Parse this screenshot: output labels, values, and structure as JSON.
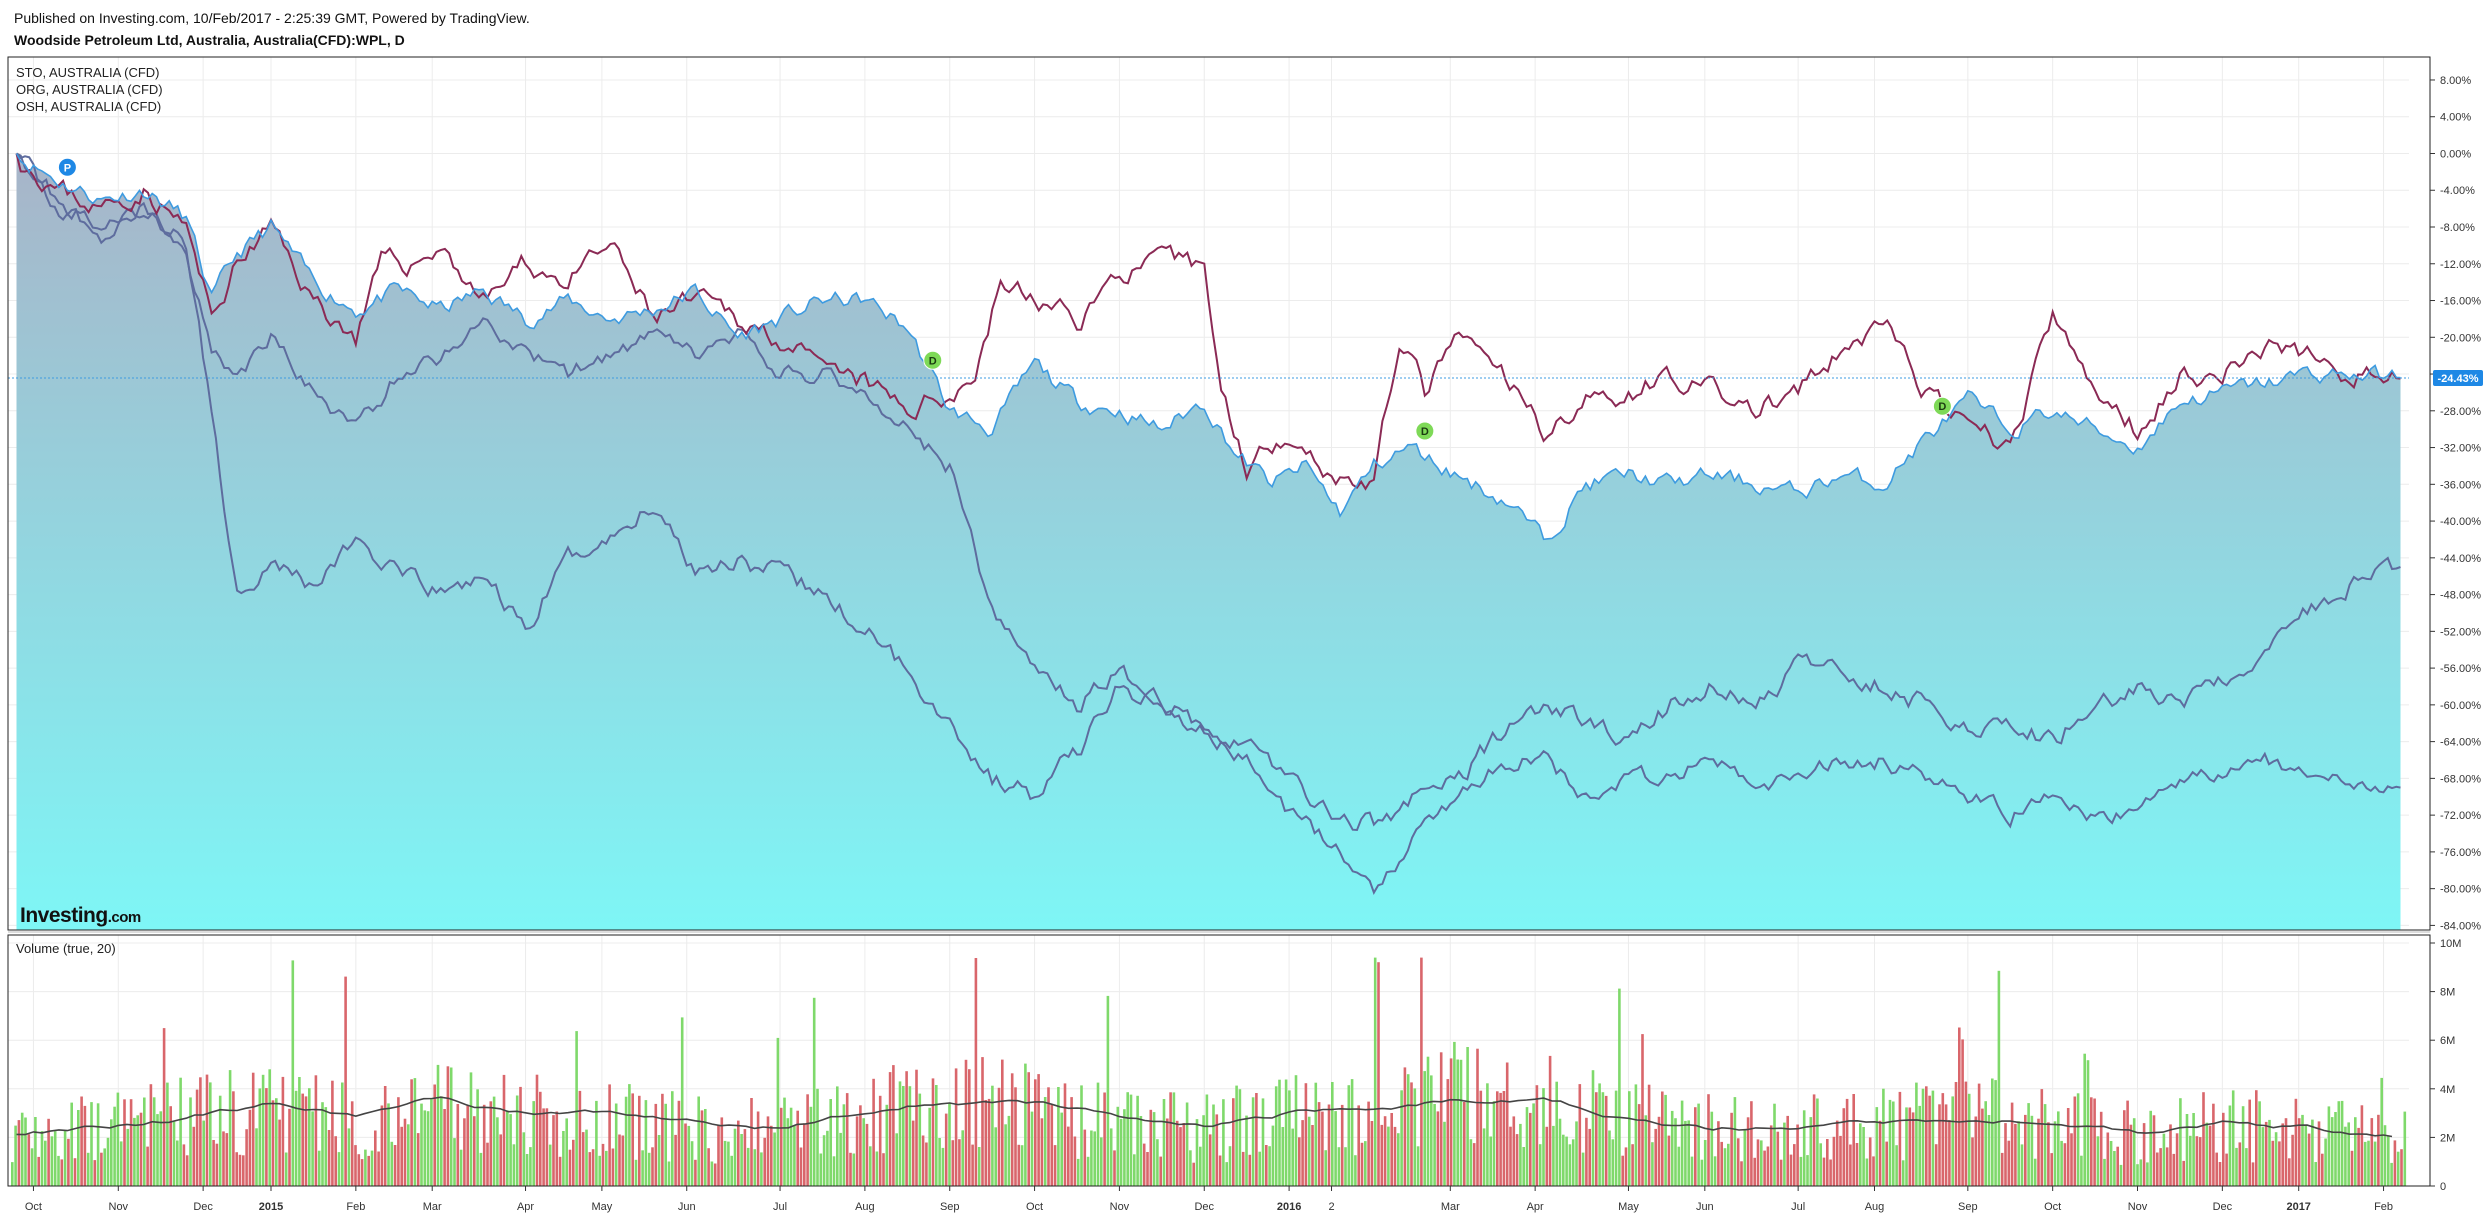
{
  "header": {
    "published": "Published on Investing.com, 10/Feb/2017 - 2:25:39 GMT, Powered by TradingView.",
    "instrument": "Woodside Petroleum Ltd, Australia, Australia(CFD):WPL, D"
  },
  "legend": [
    "STO, AUSTRALIA (CFD)",
    "ORG, AUSTRALIA (CFD)",
    "OSH, AUSTRALIA (CFD)"
  ],
  "logo": {
    "main": "Investing",
    "sub": ".com"
  },
  "volume_label": "Volume (true, 20)",
  "last_value_label": "-24.43%",
  "markers": [
    {
      "letter": "P",
      "month": 0.6,
      "value": -1.5,
      "color": "#1e88e5"
    },
    {
      "letter": "D",
      "month": 10.8,
      "value": -22.5,
      "color": "#7ed957"
    },
    {
      "letter": "D",
      "month": 16.6,
      "value": -30.2,
      "color": "#7ed957"
    },
    {
      "letter": "D",
      "month": 22.7,
      "value": -27.5,
      "color": "#7ed957"
    }
  ],
  "colors": {
    "wpl_line": "#3e9be0",
    "area_top": "#a8b4c8",
    "area_bottom": "#7ef6f6",
    "compare_red": "#8b2a55",
    "compare_gray": "#5e6c9e",
    "vol_up": "#7fd96b",
    "vol_down": "#d9666b",
    "vol_ma": "#444444",
    "badge": "#1e88e5"
  },
  "chart_data": [
    {
      "type": "area",
      "title": "Woodside Petroleum Ltd, Australia, Australia(CFD):WPL, D",
      "x_axis": {
        "type": "time",
        "ticks": [
          "Oct",
          "Nov",
          "Dec",
          "2015",
          "Feb",
          "Mar",
          "Apr",
          "May",
          "Jun",
          "Jul",
          "Aug",
          "Sep",
          "Oct",
          "Nov",
          "Dec",
          "2016",
          "2",
          "Mar",
          "Apr",
          "May",
          "Jun",
          "Jul",
          "Aug",
          "Sep",
          "Oct",
          "Nov",
          "Dec",
          "2017",
          "Feb"
        ],
        "bold_ticks": [
          "2015",
          "2016",
          "2017"
        ],
        "tick_positions": [
          0.2,
          1.2,
          2.2,
          3.0,
          4.0,
          4.9,
          6.0,
          6.9,
          7.9,
          9.0,
          10.0,
          11.0,
          12.0,
          13.0,
          14.0,
          15.0,
          15.5,
          16.9,
          17.9,
          19.0,
          19.9,
          21.0,
          21.9,
          23.0,
          24.0,
          25.0,
          26.0,
          26.9,
          27.9
        ],
        "range_months": [
          -0.1,
          28.2
        ]
      },
      "y_axis": {
        "unit": "%",
        "ticks": [
          "8.00%",
          "4.00%",
          "0.00%",
          "-4.00%",
          "-8.00%",
          "-12.00%",
          "-16.00%",
          "-20.00%",
          "-24.00%",
          "-28.00%",
          "-32.00%",
          "-36.00%",
          "-40.00%",
          "-44.00%",
          "-48.00%",
          "-52.00%",
          "-56.00%",
          "-60.00%",
          "-64.00%",
          "-68.00%",
          "-72.00%",
          "-76.00%",
          "-80.00%",
          "-84.00%"
        ],
        "range": [
          -84.5,
          10.5
        ]
      },
      "grid": true,
      "last_value": -24.43,
      "series": [
        {
          "name": "WPL",
          "style": "area",
          "x": [
            0,
            0.5,
            1,
            1.5,
            2,
            2.3,
            2.6,
            3,
            3.5,
            4,
            4.5,
            5,
            5.5,
            6,
            6.5,
            7,
            7.5,
            8,
            8.5,
            9,
            9.5,
            10,
            10.5,
            11,
            11.5,
            12,
            12.5,
            13,
            13.5,
            14,
            14.4,
            14.8,
            15.2,
            15.6,
            16,
            16.4,
            16.8,
            17.2,
            17.6,
            18,
            18.5,
            19,
            19.5,
            20,
            20.5,
            21,
            21.5,
            22,
            22.5,
            23,
            23.5,
            24,
            24.5,
            25,
            25.5,
            26,
            26.5,
            27,
            27.5,
            28.1
          ],
          "y": [
            0,
            -3,
            -5,
            -4,
            -7,
            -16,
            -11,
            -8,
            -14,
            -17,
            -15,
            -17,
            -15,
            -18,
            -16,
            -18,
            -17,
            -15,
            -20,
            -18,
            -16,
            -16,
            -19,
            -28,
            -30,
            -23,
            -27,
            -28,
            -30,
            -27,
            -33,
            -36,
            -34,
            -39,
            -34,
            -32,
            -34,
            -36,
            -38,
            -42,
            -36,
            -35,
            -36,
            -35,
            -36,
            -37,
            -35,
            -36,
            -31,
            -27,
            -30,
            -28,
            -30,
            -32,
            -27,
            -26,
            -25,
            -24,
            -24,
            -24.4
          ]
        },
        {
          "name": "STO",
          "style": "line",
          "x": [
            0,
            0.5,
            1,
            1.5,
            2,
            2.3,
            2.6,
            3,
            3.5,
            4,
            4.3,
            4.7,
            5,
            5.5,
            6,
            6.5,
            7,
            7.5,
            8,
            8.5,
            9,
            9.5,
            10,
            10.5,
            11,
            11.3,
            11.6,
            12,
            12.5,
            13,
            13.5,
            14,
            14.2,
            14.5,
            15,
            15.5,
            16,
            16.3,
            16.6,
            17,
            17.5,
            18,
            18.5,
            19,
            19.5,
            20,
            20.5,
            21,
            21.5,
            22,
            22.5,
            23,
            23.5,
            24,
            24.5,
            25,
            25.5,
            26,
            26.5,
            27,
            27.5,
            28.1
          ],
          "y": [
            0,
            -4,
            -6,
            -4,
            -8,
            -18,
            -12,
            -8,
            -16,
            -20,
            -12,
            -12,
            -10,
            -16,
            -12,
            -14,
            -10,
            -18,
            -16,
            -18,
            -20,
            -24,
            -25,
            -28,
            -26,
            -24,
            -14,
            -16,
            -18,
            -13,
            -12,
            -12,
            -26,
            -34,
            -30,
            -35,
            -36,
            -20,
            -26,
            -20,
            -24,
            -30,
            -27,
            -26,
            -24,
            -26,
            -28,
            -26,
            -22,
            -18,
            -26,
            -30,
            -32,
            -18,
            -26,
            -30,
            -24,
            -24,
            -21,
            -22,
            -24,
            -24.5
          ]
        },
        {
          "name": "ORG",
          "style": "line",
          "x": [
            0,
            0.5,
            1,
            1.5,
            2,
            2.3,
            2.6,
            3,
            3.5,
            4,
            4.5,
            5,
            5.5,
            6,
            6.5,
            7,
            7.5,
            8,
            8.5,
            9,
            9.5,
            10,
            10.5,
            11,
            11.5,
            12,
            12.5,
            13,
            13.5,
            14,
            14.5,
            15,
            15.5,
            16,
            16.5,
            17,
            17.5,
            18,
            18.5,
            19,
            19.5,
            20,
            20.5,
            21,
            21.5,
            22,
            22.5,
            23,
            23.5,
            24,
            24.5,
            25,
            25.5,
            26,
            26.5,
            27,
            27.5,
            28.1
          ],
          "y": [
            0,
            -6,
            -8,
            -6,
            -10,
            -28,
            -48,
            -44,
            -47,
            -42,
            -46,
            -48,
            -46,
            -52,
            -44,
            -42,
            -38,
            -45,
            -44,
            -46,
            -48,
            -52,
            -56,
            -62,
            -68,
            -70,
            -65,
            -58,
            -60,
            -62,
            -64,
            -68,
            -72,
            -73,
            -70,
            -68,
            -63,
            -60,
            -62,
            -64,
            -60,
            -58,
            -60,
            -56,
            -56,
            -58,
            -60,
            -62,
            -62,
            -64,
            -60,
            -58,
            -60,
            -58,
            -54,
            -50,
            -47,
            -45
          ]
        },
        {
          "name": "OSH",
          "style": "line",
          "x": [
            0,
            0.5,
            1,
            1.5,
            2,
            2.3,
            2.6,
            3,
            3.5,
            4,
            4.5,
            5,
            5.5,
            6,
            6.5,
            7,
            7.5,
            8,
            8.5,
            9,
            9.5,
            10,
            10.5,
            11,
            11.5,
            12,
            12.5,
            13,
            13.5,
            14,
            14.5,
            15,
            15.5,
            16,
            16.5,
            17,
            17.5,
            18,
            18.5,
            19,
            19.5,
            20,
            20.5,
            21,
            21.5,
            22,
            22.5,
            23,
            23.5,
            24,
            24.5,
            25,
            25.5,
            26,
            26.5,
            27,
            27.5,
            28.1
          ],
          "y": [
            0,
            -5,
            -9,
            -6,
            -10,
            -22,
            -24,
            -20,
            -26,
            -30,
            -24,
            -22,
            -18,
            -22,
            -24,
            -22,
            -20,
            -22,
            -20,
            -24,
            -24,
            -26,
            -30,
            -34,
            -50,
            -56,
            -60,
            -56,
            -60,
            -63,
            -66,
            -72,
            -75,
            -80,
            -74,
            -70,
            -66,
            -66,
            -70,
            -68,
            -68,
            -66,
            -69,
            -68,
            -66,
            -66,
            -68,
            -70,
            -72,
            -70,
            -72,
            -72,
            -68,
            -68,
            -66,
            -68,
            -68,
            -69
          ]
        }
      ]
    },
    {
      "type": "bar",
      "title": "Volume (true, 20)",
      "y_axis": {
        "ticks": [
          "10M",
          "8M",
          "6M",
          "4M",
          "2M",
          "0"
        ],
        "range": [
          0,
          10
        ]
      },
      "series": [
        {
          "name": "Volume",
          "x": [
            0,
            1,
            2,
            3,
            4,
            5,
            6,
            7,
            8,
            9,
            10,
            11,
            12,
            13,
            14,
            15,
            16,
            17,
            18,
            19,
            20,
            21,
            22,
            23,
            24,
            25,
            26,
            27,
            28
          ],
          "y": [
            2.8,
            2.6,
            3.2,
            3.4,
            3.0,
            3.6,
            3.2,
            3.0,
            2.6,
            2.6,
            3.2,
            4.0,
            3.4,
            2.8,
            2.6,
            3.4,
            3.6,
            4.2,
            3.8,
            3.0,
            2.6,
            2.6,
            2.8,
            3.2,
            2.8,
            2.4,
            2.8,
            2.6,
            2.2
          ]
        },
        {
          "name": "MA(20)",
          "x": [
            0,
            1,
            2,
            3,
            4,
            5,
            6,
            7,
            8,
            9,
            10,
            11,
            12,
            13,
            14,
            15,
            16,
            17,
            18,
            19,
            20,
            21,
            22,
            23,
            24,
            25,
            26,
            27,
            28
          ],
          "y": [
            2.2,
            2.4,
            2.8,
            3.4,
            2.8,
            3.6,
            3.0,
            3.0,
            2.6,
            2.4,
            3.0,
            3.6,
            3.4,
            2.8,
            2.4,
            3.0,
            3.2,
            3.6,
            3.6,
            2.8,
            2.4,
            2.4,
            2.6,
            2.8,
            2.6,
            2.2,
            2.6,
            2.4,
            2.0
          ]
        }
      ]
    }
  ]
}
